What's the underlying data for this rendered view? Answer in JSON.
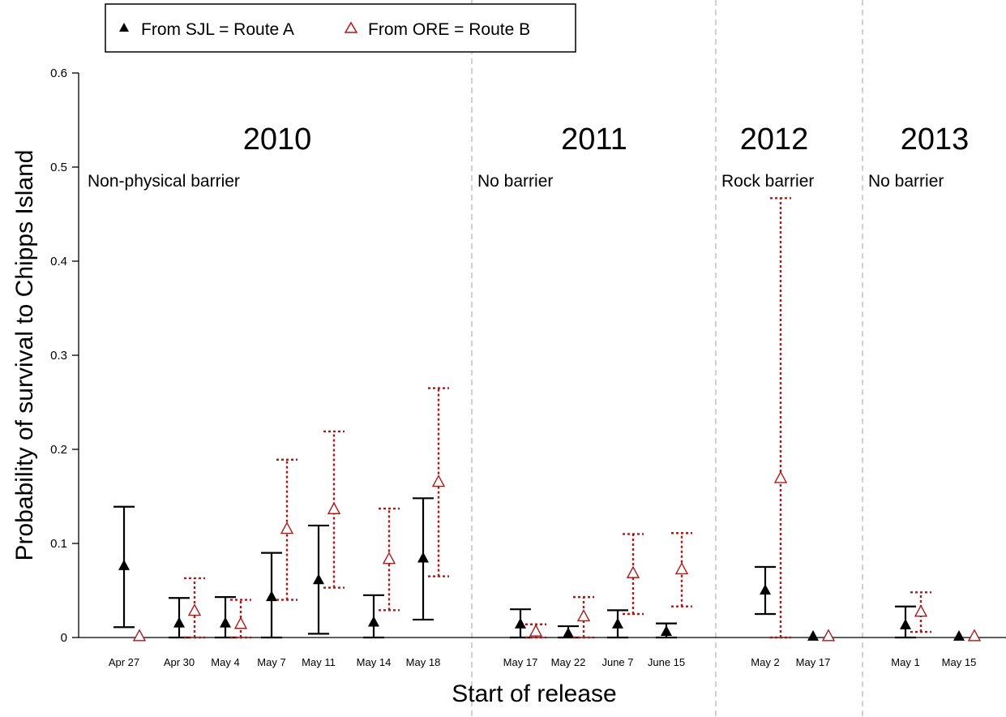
{
  "chart_data": {
    "type": "scatter",
    "xlabel": "Start of release",
    "ylabel": "Probability of survival to Chipps Island",
    "ylim": [
      0,
      0.62
    ],
    "yticks": [
      0,
      0.1,
      0.2,
      0.3,
      0.4,
      0.5,
      0.6
    ],
    "ytick_labels": [
      "0",
      "0.1",
      "0.2",
      "0.3",
      "0.4",
      "0.5",
      "0.6"
    ],
    "legend": {
      "placement": "top-left",
      "entries": [
        {
          "key": "A",
          "label": "From SJL = Route A",
          "marker": "filled-triangle",
          "color": "#000000"
        },
        {
          "key": "B",
          "label": "From ORE = Route B",
          "marker": "open-triangle",
          "color": "#b01818"
        }
      ]
    },
    "panels": [
      {
        "year": "2010",
        "note": "Non-physical barrier"
      },
      {
        "year": "2011",
        "note": "No barrier"
      },
      {
        "year": "2012",
        "note": "Rock barrier"
      },
      {
        "year": "2013",
        "note": "No barrier"
      }
    ],
    "categories": [
      {
        "label": "Apr 27",
        "panel": 0,
        "A": {
          "y": 0.076,
          "lo": 0.011,
          "hi": 0.139
        },
        "B": {
          "y": 0.001,
          "lo": null,
          "hi": null
        }
      },
      {
        "label": "Apr 30",
        "panel": 0,
        "A": {
          "y": 0.015,
          "lo": 0.0,
          "hi": 0.042
        },
        "B": {
          "y": 0.028,
          "lo": 0.0,
          "hi": 0.063
        }
      },
      {
        "label": "May 4",
        "panel": 0,
        "A": {
          "y": 0.015,
          "lo": 0.0,
          "hi": 0.043
        },
        "B": {
          "y": 0.014,
          "lo": 0.0,
          "hi": 0.04
        }
      },
      {
        "label": "May 7",
        "panel": 0,
        "A": {
          "y": 0.043,
          "lo": 0.0,
          "hi": 0.09
        },
        "B": {
          "y": 0.115,
          "lo": 0.04,
          "hi": 0.189
        }
      },
      {
        "label": "May 11",
        "panel": 0,
        "A": {
          "y": 0.061,
          "lo": 0.004,
          "hi": 0.119
        },
        "B": {
          "y": 0.136,
          "lo": 0.053,
          "hi": 0.219
        }
      },
      {
        "label": "May 14",
        "panel": 0,
        "A": {
          "y": 0.016,
          "lo": 0.0,
          "hi": 0.045
        },
        "B": {
          "y": 0.083,
          "lo": 0.029,
          "hi": 0.137
        }
      },
      {
        "label": "May 18",
        "panel": 0,
        "A": {
          "y": 0.084,
          "lo": 0.019,
          "hi": 0.148
        },
        "B": {
          "y": 0.165,
          "lo": 0.065,
          "hi": 0.265
        }
      },
      {
        "label": "May 17",
        "panel": 1,
        "A": {
          "y": 0.014,
          "lo": 0.0,
          "hi": 0.03
        },
        "B": {
          "y": 0.006,
          "lo": 0.0,
          "hi": 0.014
        }
      },
      {
        "label": "May 22",
        "panel": 1,
        "A": {
          "y": 0.004,
          "lo": 0.0,
          "hi": 0.012
        },
        "B": {
          "y": 0.022,
          "lo": 0.0,
          "hi": 0.043
        }
      },
      {
        "label": "June 7",
        "panel": 1,
        "A": {
          "y": 0.014,
          "lo": 0.0,
          "hi": 0.029
        },
        "B": {
          "y": 0.068,
          "lo": 0.025,
          "hi": 0.11
        }
      },
      {
        "label": "June 15",
        "panel": 1,
        "A": {
          "y": 0.006,
          "lo": 0.0,
          "hi": 0.015
        },
        "B": {
          "y": 0.072,
          "lo": 0.033,
          "hi": 0.111
        }
      },
      {
        "label": "May 2",
        "panel": 2,
        "A": {
          "y": 0.05,
          "lo": 0.025,
          "hi": 0.075
        },
        "B": {
          "y": 0.169,
          "lo": 0.0,
          "hi": 0.467
        }
      },
      {
        "label": "May 17",
        "panel": 2,
        "A": {
          "y": 0.001,
          "lo": null,
          "hi": null
        },
        "B": {
          "y": 0.001,
          "lo": null,
          "hi": null
        }
      },
      {
        "label": "May 1",
        "panel": 3,
        "A": {
          "y": 0.013,
          "lo": 0.0,
          "hi": 0.033
        },
        "B": {
          "y": 0.027,
          "lo": 0.006,
          "hi": 0.048
        }
      },
      {
        "label": "May 15",
        "panel": 3,
        "A": {
          "y": 0.001,
          "lo": null,
          "hi": null
        },
        "B": {
          "y": 0.001,
          "lo": null,
          "hi": null
        }
      }
    ],
    "grid": false
  }
}
